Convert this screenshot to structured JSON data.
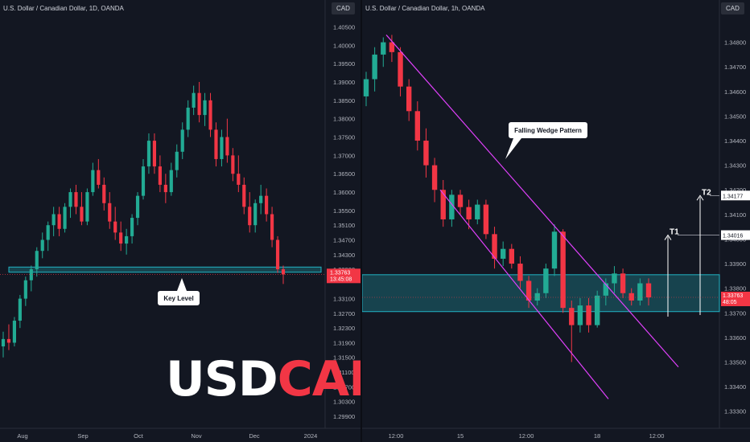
{
  "left_chart": {
    "title": "U.S. Dollar / Canadian Dollar, 1D, OANDA",
    "currency_label": "CAD",
    "y_ticks": [
      "1.40500",
      "1.40000",
      "1.39500",
      "1.39000",
      "1.38500",
      "1.38000",
      "1.37500",
      "1.37000",
      "1.36500",
      "1.36000",
      "1.35500",
      "1.35100",
      "1.34700",
      "1.34300",
      "1.33900",
      "1.33100",
      "1.32700",
      "1.32300",
      "1.31900",
      "1.31500",
      "1.31100",
      "1.30700",
      "1.30300",
      "1.29900"
    ],
    "x_ticks": [
      "Aug",
      "Sep",
      "Oct",
      "Nov",
      "Dec",
      "2024"
    ],
    "price_tag": "1.33763",
    "countdown_tag": "13:45:08",
    "annotation": "Key Level",
    "brand_white": "USD",
    "brand_red": "CAD"
  },
  "right_chart": {
    "title": "U.S. Dollar / Canadian Dollar, 1h, OANDA",
    "currency_label": "CAD",
    "y_ticks": [
      "1.34800",
      "1.34700",
      "1.34600",
      "1.34500",
      "1.34400",
      "1.34300",
      "1.34200",
      "1.34100",
      "1.34000",
      "1.33900",
      "1.33800",
      "1.33700",
      "1.33600",
      "1.33500",
      "1.33400",
      "1.33300"
    ],
    "x_ticks": [
      "12:00",
      "15",
      "12:00",
      "18",
      "12:00"
    ],
    "price_tag": "1.33763",
    "countdown_tag": "48:05",
    "t1_tag": "1.34016",
    "t2_tag": "1.34177",
    "annotation": "Falling Wedge Pattern",
    "t1_label": "T1",
    "t2_label": "T2"
  },
  "chart_data": [
    {
      "type": "candlestick",
      "title": "U.S. Dollar / Canadian Dollar, 1D, OANDA",
      "ylim": [
        1.297,
        1.4075
      ],
      "x_ticks": [
        "Aug",
        "Sep",
        "Oct",
        "Nov",
        "Dec",
        "2024"
      ],
      "key_level_zone": [
        1.3382,
        1.3396
      ],
      "last_price": 1.33763,
      "candles": [
        [
          1.318,
          1.322,
          1.315,
          1.32
        ],
        [
          1.32,
          1.324,
          1.317,
          1.319
        ],
        [
          1.319,
          1.326,
          1.318,
          1.325
        ],
        [
          1.325,
          1.332,
          1.323,
          1.331
        ],
        [
          1.331,
          1.337,
          1.329,
          1.336
        ],
        [
          1.336,
          1.34,
          1.333,
          1.339
        ],
        [
          1.339,
          1.345,
          1.337,
          1.344
        ],
        [
          1.344,
          1.349,
          1.342,
          1.347
        ],
        [
          1.347,
          1.352,
          1.344,
          1.351
        ],
        [
          1.351,
          1.356,
          1.348,
          1.354
        ],
        [
          1.354,
          1.356,
          1.348,
          1.35
        ],
        [
          1.35,
          1.357,
          1.349,
          1.356
        ],
        [
          1.356,
          1.361,
          1.353,
          1.36
        ],
        [
          1.36,
          1.362,
          1.354,
          1.356
        ],
        [
          1.356,
          1.36,
          1.351,
          1.352
        ],
        [
          1.352,
          1.361,
          1.351,
          1.36
        ],
        [
          1.36,
          1.368,
          1.359,
          1.366
        ],
        [
          1.366,
          1.369,
          1.361,
          1.362
        ],
        [
          1.362,
          1.364,
          1.355,
          1.357
        ],
        [
          1.357,
          1.36,
          1.35,
          1.352
        ],
        [
          1.352,
          1.356,
          1.347,
          1.349
        ],
        [
          1.349,
          1.352,
          1.344,
          1.346
        ],
        [
          1.346,
          1.35,
          1.343,
          1.348
        ],
        [
          1.348,
          1.354,
          1.346,
          1.353
        ],
        [
          1.353,
          1.36,
          1.351,
          1.359
        ],
        [
          1.359,
          1.369,
          1.358,
          1.367
        ],
        [
          1.367,
          1.376,
          1.365,
          1.374
        ],
        [
          1.374,
          1.376,
          1.365,
          1.367
        ],
        [
          1.367,
          1.37,
          1.36,
          1.362
        ],
        [
          1.362,
          1.365,
          1.357,
          1.36
        ],
        [
          1.36,
          1.368,
          1.359,
          1.366
        ],
        [
          1.366,
          1.373,
          1.364,
          1.371
        ],
        [
          1.371,
          1.379,
          1.369,
          1.377
        ],
        [
          1.377,
          1.385,
          1.375,
          1.383
        ],
        [
          1.383,
          1.389,
          1.381,
          1.387
        ],
        [
          1.387,
          1.39,
          1.379,
          1.381
        ],
        [
          1.381,
          1.387,
          1.378,
          1.385
        ],
        [
          1.385,
          1.387,
          1.375,
          1.377
        ],
        [
          1.377,
          1.379,
          1.367,
          1.369
        ],
        [
          1.369,
          1.377,
          1.367,
          1.375
        ],
        [
          1.375,
          1.38,
          1.368,
          1.37
        ],
        [
          1.37,
          1.372,
          1.363,
          1.365
        ],
        [
          1.365,
          1.37,
          1.36,
          1.362
        ],
        [
          1.362,
          1.364,
          1.354,
          1.356
        ],
        [
          1.356,
          1.36,
          1.349,
          1.351
        ],
        [
          1.351,
          1.358,
          1.349,
          1.357
        ],
        [
          1.357,
          1.362,
          1.354,
          1.359
        ],
        [
          1.359,
          1.361,
          1.352,
          1.354
        ],
        [
          1.354,
          1.356,
          1.345,
          1.347
        ],
        [
          1.347,
          1.348,
          1.338,
          1.339
        ],
        [
          1.339,
          1.34,
          1.335,
          1.3376
        ]
      ]
    },
    {
      "type": "candlestick",
      "title": "U.S. Dollar / Canadian Dollar, 1h, OANDA",
      "ylim": [
        1.3325,
        1.349
      ],
      "x_ticks": [
        "12:00",
        "15",
        "12:00",
        "18",
        "12:00"
      ],
      "resistance_zone": [
        1.33705,
        1.33855
      ],
      "wedge_upper": [
        [
          1.3483
        ],
        [
          1.3348
        ]
      ],
      "wedge_lower": [
        [
          1.342
        ],
        [
          1.3335
        ]
      ],
      "targets": {
        "T1": 1.34016,
        "T2": 1.34177
      },
      "last_price": 1.33763,
      "candles": [
        [
          1.3458,
          1.3468,
          1.3454,
          1.3465
        ],
        [
          1.3465,
          1.3478,
          1.346,
          1.3475
        ],
        [
          1.3475,
          1.3482,
          1.347,
          1.348
        ],
        [
          1.348,
          1.3483,
          1.3472,
          1.3476
        ],
        [
          1.3476,
          1.3478,
          1.3458,
          1.3462
        ],
        [
          1.3462,
          1.3465,
          1.3448,
          1.3452
        ],
        [
          1.3452,
          1.3456,
          1.3436,
          1.344
        ],
        [
          1.344,
          1.3445,
          1.3425,
          1.343
        ],
        [
          1.343,
          1.3433,
          1.3415,
          1.342
        ],
        [
          1.342,
          1.3424,
          1.3405,
          1.3408
        ],
        [
          1.3408,
          1.342,
          1.3405,
          1.3418
        ],
        [
          1.3418,
          1.342,
          1.341,
          1.3413
        ],
        [
          1.3413,
          1.3416,
          1.3404,
          1.3408
        ],
        [
          1.3408,
          1.3416,
          1.3406,
          1.3414
        ],
        [
          1.3414,
          1.3416,
          1.34,
          1.3402
        ],
        [
          1.3402,
          1.3405,
          1.3388,
          1.3392
        ],
        [
          1.3392,
          1.3399,
          1.3389,
          1.3396
        ],
        [
          1.3396,
          1.3398,
          1.3388,
          1.339
        ],
        [
          1.339,
          1.3393,
          1.338,
          1.3383
        ],
        [
          1.3383,
          1.3385,
          1.3372,
          1.3375
        ],
        [
          1.3375,
          1.338,
          1.3373,
          1.3378
        ],
        [
          1.3378,
          1.339,
          1.3376,
          1.3388
        ],
        [
          1.3388,
          1.3406,
          1.3385,
          1.3403
        ],
        [
          1.3403,
          1.3404,
          1.337,
          1.3372
        ],
        [
          1.3372,
          1.3375,
          1.335,
          1.3365
        ],
        [
          1.3365,
          1.3376,
          1.3362,
          1.3373
        ],
        [
          1.3373,
          1.3376,
          1.3362,
          1.3365
        ],
        [
          1.3365,
          1.3379,
          1.3364,
          1.3377
        ],
        [
          1.3377,
          1.3384,
          1.3373,
          1.3382
        ],
        [
          1.3382,
          1.3389,
          1.3378,
          1.3386
        ],
        [
          1.3386,
          1.3388,
          1.3376,
          1.3378
        ],
        [
          1.3378,
          1.338,
          1.3373,
          1.3375
        ],
        [
          1.3375,
          1.3384,
          1.3373,
          1.3382
        ],
        [
          1.3382,
          1.3384,
          1.3373,
          1.33763
        ]
      ]
    }
  ]
}
